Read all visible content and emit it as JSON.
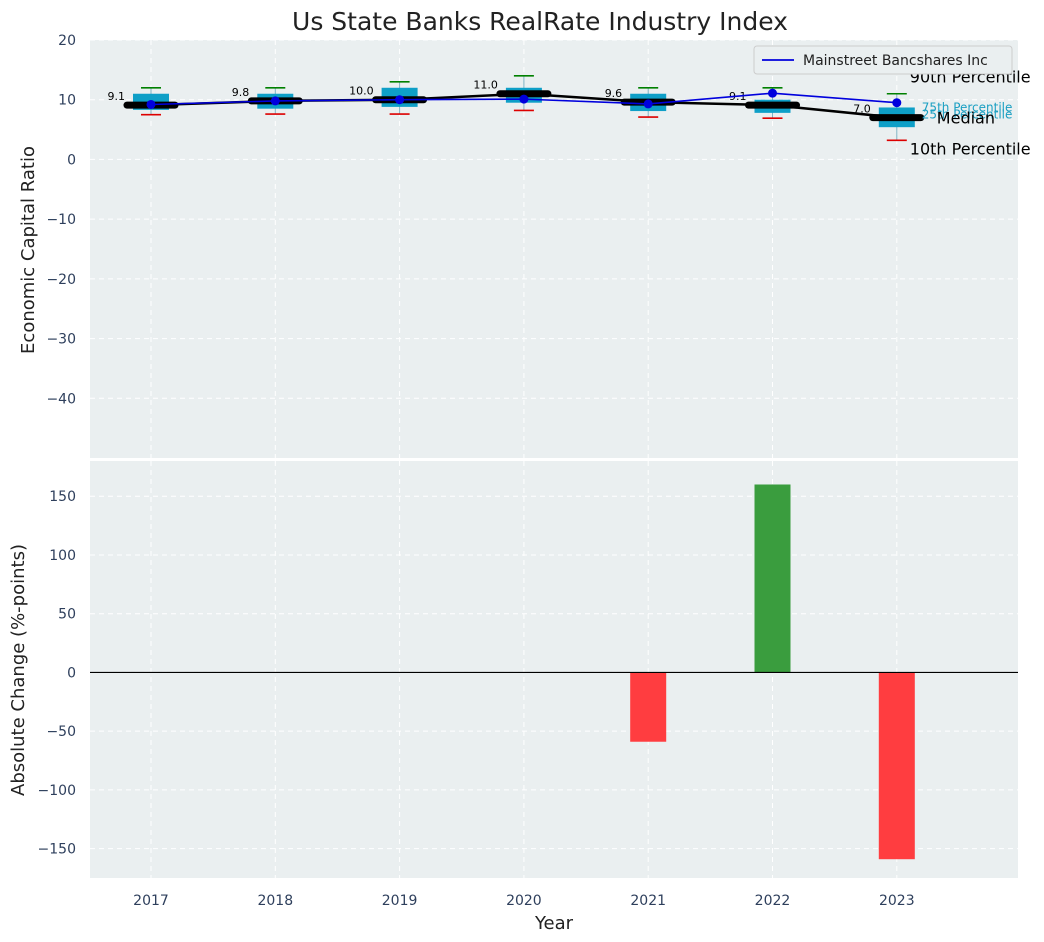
{
  "chart_data": [
    {
      "type": "box",
      "title": "Us State Banks RealRate Industry Index",
      "xlabel": "",
      "ylabel": "Economic Capital Ratio",
      "ylim": [
        -50,
        20
      ],
      "yticks": [
        20,
        10,
        0,
        -10,
        -20,
        -30,
        -40
      ],
      "yticks_display": [
        "20",
        "10",
        "0",
        "−10",
        "−20",
        "−30",
        "−40"
      ],
      "categories": [
        "2017",
        "2018",
        "2019",
        "2020",
        "2021",
        "2022",
        "2023"
      ],
      "grid": true,
      "legend": {
        "location": "top-right",
        "entries": [
          "Mainstreet Bancshares Inc"
        ]
      },
      "industry": {
        "p10": [
          7.5,
          7.6,
          7.6,
          8.2,
          7.1,
          6.9,
          3.2
        ],
        "p25": [
          8.3,
          8.5,
          8.8,
          9.5,
          8.1,
          7.8,
          5.4
        ],
        "median": [
          9.1,
          9.8,
          10.0,
          11.0,
          9.6,
          9.1,
          7.0
        ],
        "p75": [
          11.0,
          11.0,
          12.0,
          12.0,
          11.0,
          10.0,
          8.7
        ],
        "p90": [
          12.0,
          12.0,
          13.0,
          14.0,
          12.0,
          12.0,
          11.0
        ],
        "median_labels": [
          "9.1",
          "9.8",
          "10.0",
          "11.0",
          "9.6",
          "9.1",
          "7.0"
        ]
      },
      "company": {
        "name": "Mainstreet Bancshares Inc",
        "values": [
          9.2,
          9.8,
          10.0,
          10.1,
          9.3,
          11.1,
          9.5
        ]
      },
      "annotations": {
        "p90": "90th Percentile",
        "p75": "75th Percentile",
        "median": "Median",
        "p25": "25th Percentile",
        "p10": "10th Percentile"
      },
      "colors": {
        "box": "#0e9fc7",
        "median_line": "#000000",
        "company_line": "#0000dd",
        "p90_cap": "#008000",
        "p10_cap": "#dd0000",
        "annot_small": "#1a9fc2"
      }
    },
    {
      "type": "bar",
      "xlabel": "Year",
      "ylabel": "Absolute Change (%-points)",
      "ylim": [
        -175,
        180
      ],
      "yticks": [
        150,
        100,
        50,
        0,
        -50,
        -100,
        -150
      ],
      "yticks_display": [
        "150",
        "100",
        "50",
        "0",
        "−50",
        "−100",
        "−150"
      ],
      "categories": [
        "2017",
        "2018",
        "2019",
        "2020",
        "2021",
        "2022",
        "2023"
      ],
      "values": [
        0,
        0,
        0,
        0,
        -59,
        160,
        -159
      ],
      "grid": true,
      "colors": {
        "positive": "#3a9d3e",
        "negative": "#ff3d40",
        "zero_line": "#000000"
      }
    }
  ]
}
